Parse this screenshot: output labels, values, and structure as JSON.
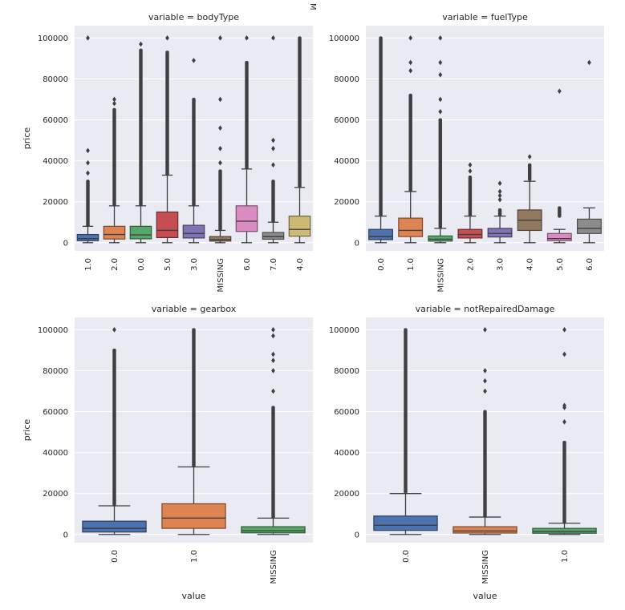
{
  "figure": {
    "stray_label": "M",
    "palette": [
      "#4c72b0",
      "#dd8452",
      "#55a868",
      "#c44e52",
      "#8172b3",
      "#937860",
      "#da8bc3",
      "#8c8c8c",
      "#ccb974"
    ],
    "panel_background": "#eaeaf2",
    "grid_color": "#ffffff",
    "line_color": "#3f3f3f"
  },
  "chart_data": [
    {
      "type": "box",
      "title": "variable = bodyType",
      "xlabel": "",
      "ylabel": "price",
      "ylim": [
        -4000,
        106000
      ],
      "yticks": [
        0,
        20000,
        40000,
        60000,
        80000,
        100000
      ],
      "ytick_labels": [
        "0",
        "20000",
        "40000",
        "60000",
        "80000",
        "100000"
      ],
      "categories": [
        "1.0",
        "2.0",
        "0.0",
        "5.0",
        "3.0",
        "MISSING",
        "6.0",
        "7.0",
        "4.0"
      ],
      "boxes": [
        {
          "q1": 1000,
          "median": 2000,
          "q3": 4000,
          "whisker_low": 0,
          "whisker_high": 8000,
          "outlier_min": 8500,
          "outlier_max": 30000,
          "sparse_outliers": [
            34000,
            39000,
            45000,
            100000
          ]
        },
        {
          "q1": 1800,
          "median": 4000,
          "q3": 8000,
          "whisker_low": 0,
          "whisker_high": 18000,
          "outlier_min": 18500,
          "outlier_max": 65000,
          "sparse_outliers": [
            68000,
            70000
          ]
        },
        {
          "q1": 1900,
          "median": 3800,
          "q3": 8000,
          "whisker_low": 0,
          "whisker_high": 18000,
          "outlier_min": 18500,
          "outlier_max": 94000,
          "sparse_outliers": [
            97000
          ]
        },
        {
          "q1": 2500,
          "median": 6000,
          "q3": 15000,
          "whisker_low": 0,
          "whisker_high": 33000,
          "outlier_min": 33500,
          "outlier_max": 93000,
          "sparse_outliers": [
            100000
          ]
        },
        {
          "q1": 2300,
          "median": 4500,
          "q3": 8500,
          "whisker_low": 0,
          "whisker_high": 18000,
          "outlier_min": 18500,
          "outlier_max": 70000,
          "sparse_outliers": [
            89000
          ]
        },
        {
          "q1": 800,
          "median": 1500,
          "q3": 3000,
          "whisker_low": 0,
          "whisker_high": 6000,
          "outlier_min": 6500,
          "outlier_max": 35000,
          "sparse_outliers": [
            39000,
            46000,
            56000,
            70000,
            100000
          ]
        },
        {
          "q1": 5500,
          "median": 10500,
          "q3": 18000,
          "whisker_low": 0,
          "whisker_high": 36000,
          "outlier_min": 36500,
          "outlier_max": 88000,
          "sparse_outliers": [
            100000
          ]
        },
        {
          "q1": 1700,
          "median": 3000,
          "q3": 5000,
          "whisker_low": 0,
          "whisker_high": 10000,
          "outlier_min": 10500,
          "outlier_max": 30000,
          "sparse_outliers": [
            38000,
            46000,
            50000,
            100000
          ]
        },
        {
          "q1": 3200,
          "median": 6500,
          "q3": 13000,
          "whisker_low": 0,
          "whisker_high": 27000,
          "outlier_min": 27500,
          "outlier_max": 100000,
          "sparse_outliers": []
        }
      ]
    },
    {
      "type": "box",
      "title": "variable = fuelType",
      "xlabel": "",
      "ylabel": "",
      "ylim": [
        -4000,
        106000
      ],
      "yticks": [
        0,
        20000,
        40000,
        60000,
        80000,
        100000
      ],
      "ytick_labels": [
        "0",
        "20000",
        "40000",
        "60000",
        "80000",
        "100000"
      ],
      "categories": [
        "0.0",
        "1.0",
        "MISSING",
        "2.0",
        "3.0",
        "4.0",
        "5.0",
        "6.0"
      ],
      "boxes": [
        {
          "q1": 1500,
          "median": 3000,
          "q3": 6500,
          "whisker_low": 0,
          "whisker_high": 13000,
          "outlier_min": 13500,
          "outlier_max": 100000,
          "sparse_outliers": []
        },
        {
          "q1": 3000,
          "median": 6000,
          "q3": 12000,
          "whisker_low": 0,
          "whisker_high": 25000,
          "outlier_min": 25500,
          "outlier_max": 72000,
          "sparse_outliers": [
            84000,
            88000,
            100000
          ]
        },
        {
          "q1": 800,
          "median": 1700,
          "q3": 3300,
          "whisker_low": 0,
          "whisker_high": 7000,
          "outlier_min": 7500,
          "outlier_max": 60000,
          "sparse_outliers": [
            64000,
            70000,
            82000,
            88000,
            100000
          ]
        },
        {
          "q1": 2300,
          "median": 4000,
          "q3": 6500,
          "whisker_low": 0,
          "whisker_high": 13000,
          "outlier_min": 13500,
          "outlier_max": 32000,
          "sparse_outliers": [
            35000,
            38000
          ]
        },
        {
          "q1": 2800,
          "median": 4500,
          "q3": 7000,
          "whisker_low": 0,
          "whisker_high": 13000,
          "outlier_min": 13500,
          "outlier_max": 16000,
          "sparse_outliers": [
            21000,
            23000,
            25000,
            29000
          ]
        },
        {
          "q1": 6000,
          "median": 11000,
          "q3": 16000,
          "whisker_low": 0,
          "whisker_high": 30000,
          "outlier_min": 31000,
          "outlier_max": 38000,
          "sparse_outliers": [
            42000
          ]
        },
        {
          "q1": 1000,
          "median": 2000,
          "q3": 4500,
          "whisker_low": 0,
          "whisker_high": 6500,
          "outlier_min": 13000,
          "outlier_max": 17000,
          "sparse_outliers": [
            74000
          ]
        },
        {
          "q1": 4500,
          "median": 7000,
          "q3": 11500,
          "whisker_low": 0,
          "whisker_high": 17000,
          "outlier_min": null,
          "outlier_max": null,
          "sparse_outliers": [
            88000
          ]
        }
      ]
    },
    {
      "type": "box",
      "title": "variable = gearbox",
      "xlabel": "value",
      "ylabel": "price",
      "ylim": [
        -4000,
        106000
      ],
      "yticks": [
        0,
        20000,
        40000,
        60000,
        80000,
        100000
      ],
      "ytick_labels": [
        "0",
        "20000",
        "40000",
        "60000",
        "80000",
        "100000"
      ],
      "categories": [
        "0.0",
        "1.0",
        "MISSING"
      ],
      "boxes": [
        {
          "q1": 1200,
          "median": 3000,
          "q3": 6500,
          "whisker_low": 0,
          "whisker_high": 14000,
          "outlier_min": 14500,
          "outlier_max": 90000,
          "sparse_outliers": [
            100000
          ]
        },
        {
          "q1": 3000,
          "median": 8000,
          "q3": 15000,
          "whisker_low": 0,
          "whisker_high": 33000,
          "outlier_min": 33500,
          "outlier_max": 100000,
          "sparse_outliers": []
        },
        {
          "q1": 800,
          "median": 1800,
          "q3": 3800,
          "whisker_low": 0,
          "whisker_high": 8000,
          "outlier_min": 8500,
          "outlier_max": 62000,
          "sparse_outliers": [
            70000,
            80000,
            85000,
            88000,
            97000,
            100000
          ]
        }
      ]
    },
    {
      "type": "box",
      "title": "variable = notRepairedDamage",
      "xlabel": "value",
      "ylabel": "",
      "ylim": [
        -4000,
        106000
      ],
      "yticks": [
        0,
        20000,
        40000,
        60000,
        80000,
        100000
      ],
      "ytick_labels": [
        "0",
        "20000",
        "40000",
        "60000",
        "80000",
        "100000"
      ],
      "categories": [
        "0.0",
        "MISSING",
        "1.0"
      ],
      "boxes": [
        {
          "q1": 2000,
          "median": 4500,
          "q3": 9000,
          "whisker_low": 0,
          "whisker_high": 20000,
          "outlier_min": 20500,
          "outlier_max": 100000,
          "sparse_outliers": []
        },
        {
          "q1": 700,
          "median": 1700,
          "q3": 3800,
          "whisker_low": 0,
          "whisker_high": 8500,
          "outlier_min": 9000,
          "outlier_max": 60000,
          "sparse_outliers": [
            70000,
            75000,
            80000,
            100000
          ]
        },
        {
          "q1": 600,
          "median": 1500,
          "q3": 3000,
          "whisker_low": 0,
          "whisker_high": 5500,
          "outlier_min": 6000,
          "outlier_max": 45000,
          "sparse_outliers": [
            55000,
            62000,
            63000,
            88000,
            100000
          ]
        }
      ]
    }
  ]
}
